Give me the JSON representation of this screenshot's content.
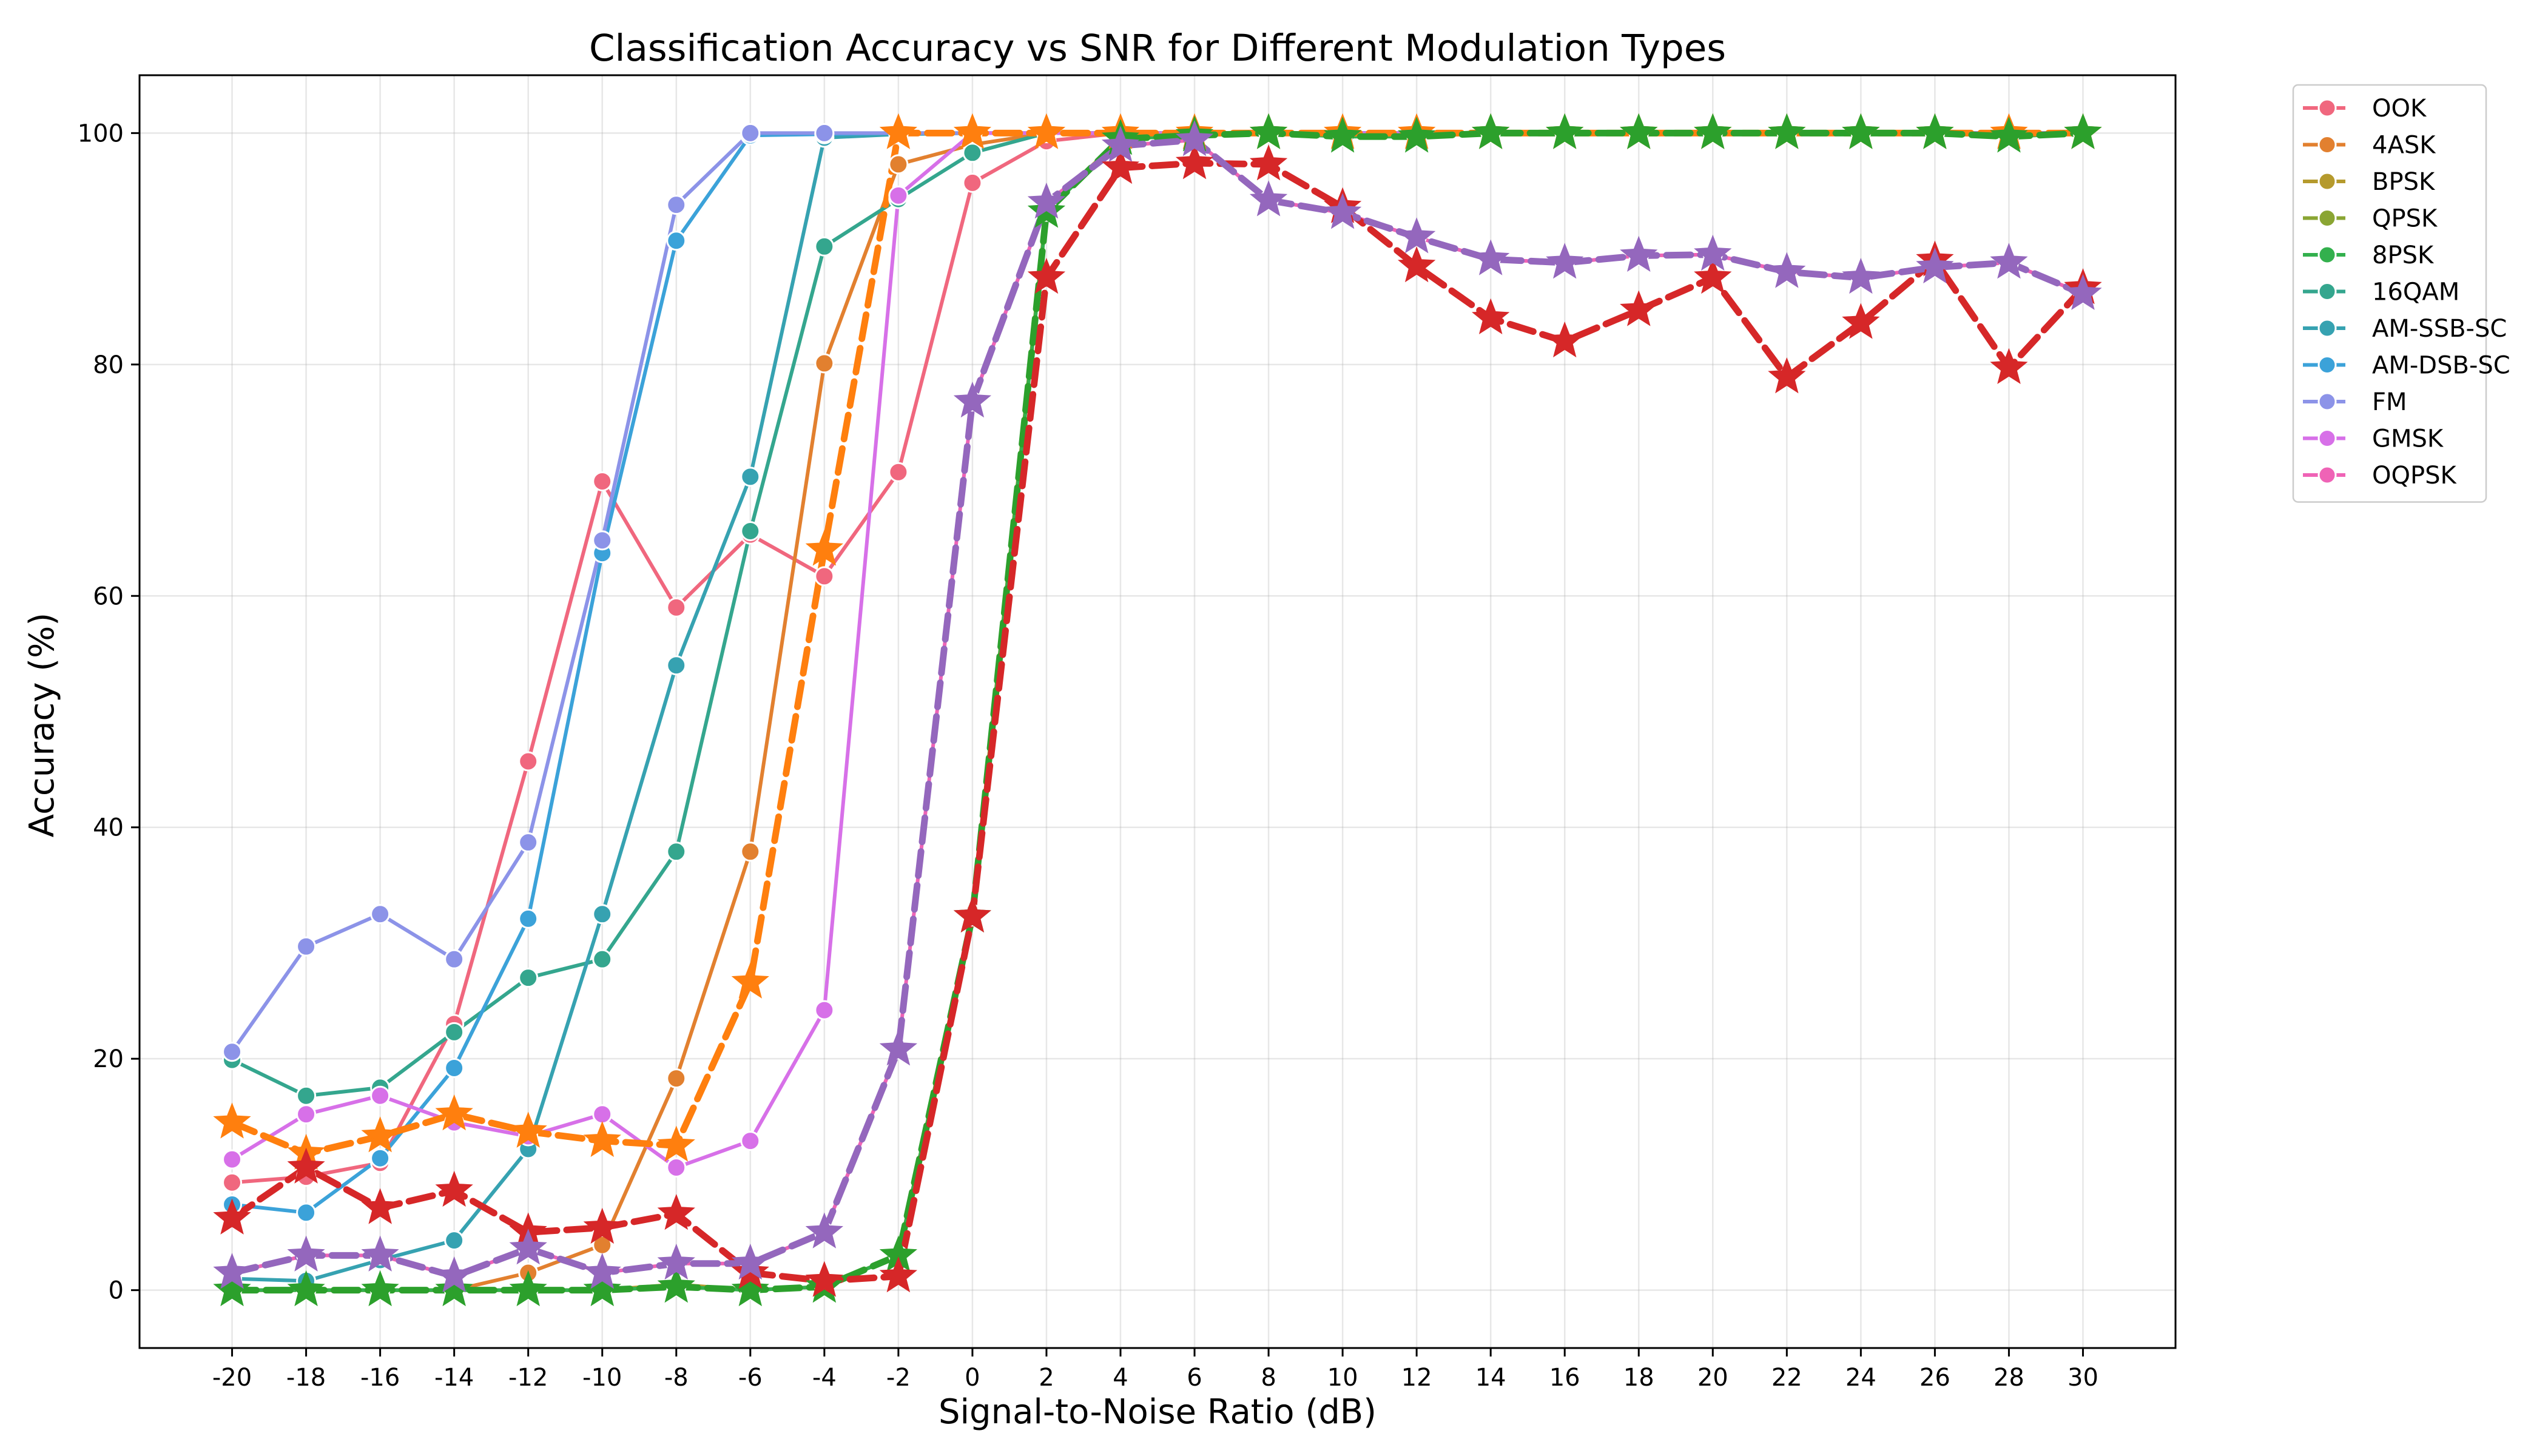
{
  "chart_data": {
    "type": "line",
    "title": "Classification Accuracy vs SNR for Different Modulation Types",
    "xlabel": "Signal-to-Noise Ratio (dB)",
    "ylabel": "Accuracy (%)",
    "xlim": [
      -22.5,
      32.5
    ],
    "ylim": [
      -5,
      105
    ],
    "x": [
      -20,
      -18,
      -16,
      -14,
      -12,
      -10,
      -8,
      -6,
      -4,
      -2,
      0,
      2,
      4,
      6,
      8,
      10,
      12,
      14,
      16,
      18,
      20,
      22,
      24,
      26,
      28,
      30
    ],
    "x_tick_labels": [
      "-20",
      "-18",
      "-16",
      "-14",
      "-12",
      "-10",
      "-8",
      "-6",
      "-4",
      "-2",
      "0",
      "2",
      "4",
      "6",
      "8",
      "10",
      "12",
      "14",
      "16",
      "18",
      "20",
      "22",
      "24",
      "26",
      "28",
      "30"
    ],
    "y_ticks": [
      0,
      20,
      40,
      60,
      80,
      100
    ],
    "y_tick_labels": [
      "0",
      "20",
      "40",
      "60",
      "80",
      "100"
    ],
    "grid": true,
    "legend_position": "outside-top-right",
    "series": [
      {
        "name": "OOK",
        "color": "#f0677e",
        "marker": "circle",
        "values": [
          9.3,
          9.8,
          11.0,
          23.0,
          45.7,
          69.9,
          59.0,
          65.3,
          61.7,
          70.7,
          95.7,
          99.3,
          100,
          100,
          100,
          100,
          100,
          100,
          100,
          100,
          100,
          100,
          100,
          100,
          100,
          100
        ]
      },
      {
        "name": "4ASK",
        "color": "#e2802f",
        "marker": "circle",
        "values": [
          0,
          0,
          0,
          0,
          1.5,
          3.9,
          18.3,
          37.9,
          80.1,
          97.3,
          99.0,
          100,
          100,
          100,
          100,
          100,
          100,
          100,
          100,
          100,
          100,
          100,
          100,
          100,
          100,
          100
        ]
      },
      {
        "name": "BPSK",
        "color": "#b59a2d",
        "marker": "circle",
        "values": [
          0,
          0,
          0,
          0,
          0,
          0,
          0.5,
          0,
          0.3,
          3.0,
          32.5,
          93.5,
          99.5,
          99.8,
          100,
          99.8,
          99.8,
          100,
          100,
          100,
          100,
          100,
          100,
          100,
          99.8,
          100
        ]
      },
      {
        "name": "QPSK",
        "color": "#8aa533",
        "marker": "circle",
        "values": [
          0,
          0,
          0,
          0,
          0,
          0,
          0.3,
          0,
          0.3,
          3.0,
          32.3,
          93.2,
          99.5,
          99.8,
          100,
          99.7,
          99.7,
          100,
          100,
          100,
          100,
          100,
          100,
          100,
          99.7,
          100
        ]
      },
      {
        "name": "8PSK",
        "color": "#33b04d",
        "marker": "circle",
        "values": [
          0,
          0,
          0,
          0,
          0,
          0,
          0.3,
          0,
          0.3,
          3.0,
          32.3,
          93.2,
          99.5,
          99.8,
          100,
          99.7,
          99.7,
          100,
          100,
          100,
          100,
          100,
          100,
          100,
          99.7,
          100
        ]
      },
      {
        "name": "16QAM",
        "color": "#34a68e",
        "marker": "circle",
        "values": [
          19.9,
          16.8,
          17.5,
          22.3,
          27.0,
          28.6,
          37.9,
          65.6,
          90.2,
          94.3,
          98.3,
          100,
          100,
          100,
          100,
          100,
          100,
          100,
          100,
          100,
          100,
          100,
          100,
          100,
          100,
          100
        ]
      },
      {
        "name": "AM-SSB-SC",
        "color": "#36a2b1",
        "marker": "circle",
        "values": [
          1.0,
          0.8,
          2.6,
          4.3,
          12.2,
          32.5,
          54.0,
          70.3,
          99.6,
          99.9,
          100,
          100,
          100,
          100,
          100,
          100,
          100,
          100,
          100,
          100,
          100,
          100,
          100,
          100,
          100,
          100
        ]
      },
      {
        "name": "AM-DSB-SC",
        "color": "#3ba2d9",
        "marker": "circle",
        "values": [
          7.4,
          6.7,
          11.4,
          19.2,
          32.1,
          63.7,
          90.7,
          99.8,
          99.9,
          100,
          100,
          100,
          100,
          100,
          100,
          100,
          100,
          100,
          100,
          100,
          100,
          100,
          100,
          100,
          100,
          100
        ]
      },
      {
        "name": "FM",
        "color": "#8c93e8",
        "marker": "circle",
        "values": [
          20.6,
          29.7,
          32.5,
          28.6,
          38.7,
          64.8,
          93.8,
          100,
          100,
          100,
          100,
          100,
          100,
          100,
          100,
          100,
          100,
          100,
          100,
          100,
          100,
          100,
          100,
          100,
          100,
          100
        ]
      },
      {
        "name": "GMSK",
        "color": "#d770e8",
        "marker": "circle",
        "values": [
          11.3,
          15.2,
          16.8,
          14.5,
          13.3,
          15.2,
          10.6,
          12.9,
          24.2,
          94.6,
          100,
          100,
          100,
          100,
          100,
          100,
          100,
          100,
          100,
          100,
          100,
          100,
          100,
          100,
          100,
          100
        ]
      },
      {
        "name": "OQPSK",
        "color": "#ef63b6",
        "marker": "circle",
        "values": [
          1.5,
          3.0,
          3.0,
          1.2,
          3.6,
          1.5,
          2.3,
          2.3,
          5.0,
          20.8,
          76.8,
          94.0,
          98.9,
          99.4,
          94.2,
          93.1,
          91.0,
          89.1,
          88.8,
          89.4,
          89.5,
          88.0,
          87.5,
          88.4,
          88.8,
          86.1
        ]
      },
      {
        "name": "",
        "color": "#ff7f0e",
        "marker": "star",
        "values": [
          14.5,
          11.8,
          13.3,
          15.2,
          13.7,
          12.9,
          12.5,
          26.6,
          64.0,
          100,
          100,
          100,
          100,
          100,
          100,
          100,
          100,
          100,
          100,
          100,
          100,
          100,
          100,
          100,
          100,
          100
        ]
      },
      {
        "name": "",
        "color": "#2ca02c",
        "marker": "star",
        "values": [
          0,
          0,
          0,
          0,
          0,
          0,
          0.3,
          0,
          0.3,
          3.0,
          32.3,
          93.2,
          99.5,
          99.8,
          100,
          99.7,
          99.7,
          100,
          100,
          100,
          100,
          100,
          100,
          100,
          99.7,
          100
        ]
      },
      {
        "name": "",
        "color": "#d62728",
        "marker": "star",
        "values": [
          6.2,
          10.6,
          7.1,
          8.6,
          5.0,
          5.4,
          6.6,
          1.5,
          0.8,
          1.2,
          32.3,
          87.5,
          97.0,
          97.4,
          97.3,
          93.6,
          88.5,
          84.0,
          82.0,
          84.7,
          87.5,
          78.9,
          83.6,
          89.0,
          79.7,
          86.6
        ]
      },
      {
        "name": "",
        "color": "#9467bd",
        "marker": "star",
        "values": [
          1.5,
          3.0,
          3.0,
          1.2,
          3.6,
          1.5,
          2.3,
          2.3,
          5.0,
          20.8,
          76.8,
          94.0,
          98.9,
          99.4,
          94.2,
          93.1,
          91.0,
          89.1,
          88.8,
          89.4,
          89.5,
          88.0,
          87.5,
          88.4,
          88.8,
          86.1
        ]
      }
    ]
  }
}
